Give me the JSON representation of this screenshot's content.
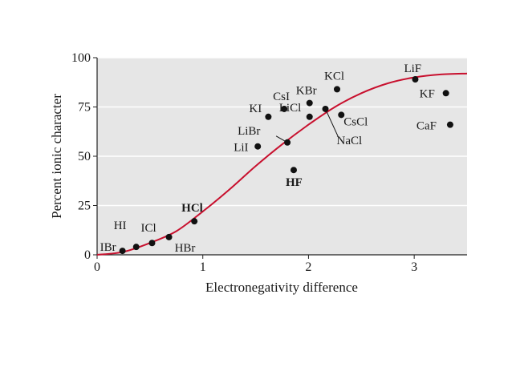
{
  "chart_data": {
    "type": "scatter",
    "xlabel": "Electronegativity difference",
    "ylabel": "Percent ionic character",
    "xlim": [
      0,
      3.5
    ],
    "ylim": [
      0,
      100
    ],
    "x_ticks": [
      "0",
      "1",
      "2",
      "3"
    ],
    "y_ticks": [
      "0",
      "25",
      "50",
      "75",
      "100"
    ],
    "grid": "horizontal",
    "colors": {
      "background": "#e6e6e6",
      "grid": "#ffffff",
      "curve": "#c8102e",
      "points": "#111111"
    },
    "points": [
      {
        "label": "IBr",
        "x": 0.24,
        "y": 2
      },
      {
        "label": "HI",
        "x": 0.37,
        "y": 4
      },
      {
        "label": "ICl",
        "x": 0.52,
        "y": 6
      },
      {
        "label": "HBr",
        "x": 0.68,
        "y": 9
      },
      {
        "label": "HCl",
        "x": 0.92,
        "y": 17
      },
      {
        "label": "LiI",
        "x": 1.52,
        "y": 55
      },
      {
        "label": "KI",
        "x": 1.62,
        "y": 70
      },
      {
        "label": "CsI",
        "x": 1.77,
        "y": 74
      },
      {
        "label": "LiBr",
        "x": 1.8,
        "y": 57
      },
      {
        "label": "HF",
        "x": 1.86,
        "y": 43
      },
      {
        "label": "LiCl",
        "x": 2.01,
        "y": 70
      },
      {
        "label": "KBr",
        "x": 2.01,
        "y": 77
      },
      {
        "label": "NaCl",
        "x": 2.16,
        "y": 74
      },
      {
        "label": "KCl",
        "x": 2.27,
        "y": 84
      },
      {
        "label": "CsCl",
        "x": 2.31,
        "y": 71
      },
      {
        "label": "LiF",
        "x": 3.01,
        "y": 89
      },
      {
        "label": "KF",
        "x": 3.3,
        "y": 82
      },
      {
        "label": "CaF",
        "x": 3.34,
        "y": 66
      }
    ],
    "curve": {
      "name": "",
      "x": [
        0,
        0.25,
        0.5,
        0.75,
        1.0,
        1.25,
        1.5,
        1.75,
        2.0,
        2.25,
        2.5,
        2.75,
        3.0,
        3.25,
        3.5
      ],
      "y": [
        0,
        1.5,
        6,
        12,
        22,
        33,
        45,
        56,
        66,
        75,
        82,
        87,
        90,
        91.5,
        92
      ]
    }
  }
}
